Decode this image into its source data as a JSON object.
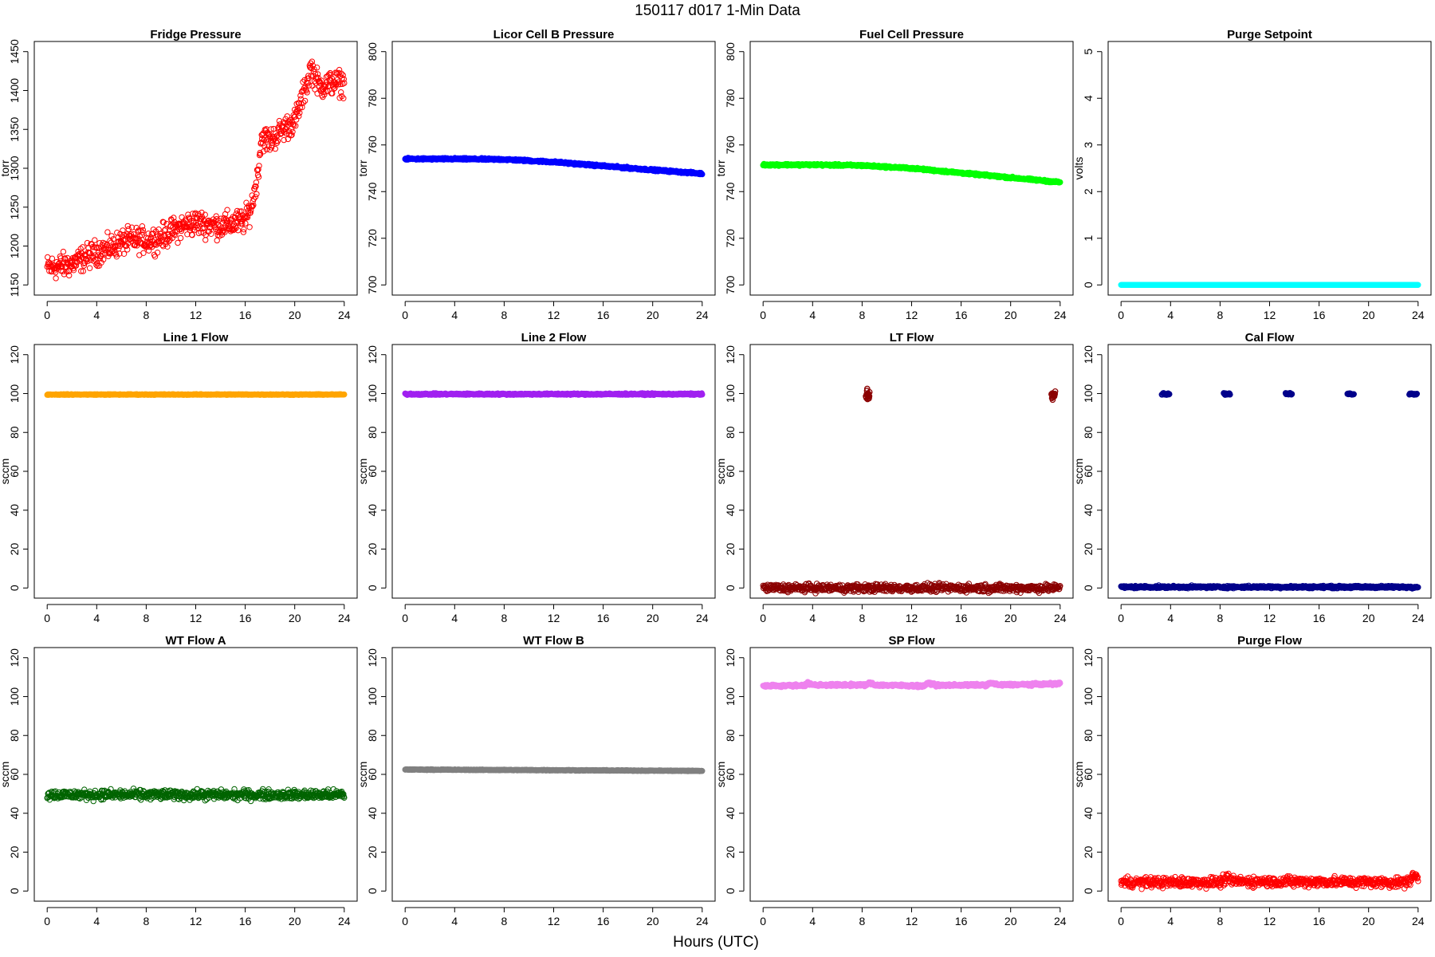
{
  "title": "150117   d017   1-Min Data",
  "xlabel": "Hours (UTC)",
  "chart_data": [
    {
      "type": "scatter",
      "title": "Fridge Pressure",
      "ylabel": "torr",
      "xlim": [
        0,
        24
      ],
      "ylim": [
        1150,
        1450
      ],
      "xticks": [
        0,
        4,
        8,
        12,
        16,
        20,
        24
      ],
      "yticks": [
        1150,
        1200,
        1250,
        1300,
        1350,
        1400,
        1450
      ],
      "color": "#ff0000",
      "marker": "open",
      "series_profile": [
        [
          0,
          1172
        ],
        [
          1,
          1174
        ],
        [
          2,
          1177
        ],
        [
          3,
          1185
        ],
        [
          4,
          1192
        ],
        [
          5,
          1197
        ],
        [
          6,
          1205
        ],
        [
          7,
          1208
        ],
        [
          8,
          1207
        ],
        [
          9,
          1210
        ],
        [
          10,
          1218
        ],
        [
          11,
          1226
        ],
        [
          12,
          1230
        ],
        [
          13,
          1228
        ],
        [
          14,
          1226
        ],
        [
          15,
          1229
        ],
        [
          16,
          1233
        ],
        [
          16.5,
          1250
        ],
        [
          17,
          1290
        ],
        [
          17.3,
          1340
        ],
        [
          18,
          1335
        ],
        [
          19,
          1350
        ],
        [
          20,
          1360
        ],
        [
          20.5,
          1385
        ],
        [
          21,
          1410
        ],
        [
          21.3,
          1430
        ],
        [
          22,
          1405
        ],
        [
          23,
          1410
        ],
        [
          24,
          1410
        ]
      ],
      "noise": 8
    },
    {
      "type": "scatter",
      "title": "Licor Cell B Pressure",
      "ylabel": "torr",
      "xlim": [
        0,
        24
      ],
      "ylim": [
        700,
        800
      ],
      "xticks": [
        0,
        4,
        8,
        12,
        16,
        20,
        24
      ],
      "yticks": [
        700,
        720,
        740,
        760,
        780,
        800
      ],
      "color": "#0000ff",
      "marker": "filled",
      "series_profile": [
        [
          0,
          754
        ],
        [
          4,
          754
        ],
        [
          8,
          753.8
        ],
        [
          12,
          752.7
        ],
        [
          16,
          751
        ],
        [
          20,
          749.3
        ],
        [
          24,
          747.7
        ]
      ],
      "noise": 0.2
    },
    {
      "type": "scatter",
      "title": "Fuel Cell Pressure",
      "ylabel": "torr",
      "xlim": [
        0,
        24
      ],
      "ylim": [
        700,
        800
      ],
      "xticks": [
        0,
        4,
        8,
        12,
        16,
        20,
        24
      ],
      "yticks": [
        700,
        720,
        740,
        760,
        780,
        800
      ],
      "color": "#00ff00",
      "marker": "filled",
      "series_profile": [
        [
          0,
          751.5
        ],
        [
          4,
          751.5
        ],
        [
          8,
          751.2
        ],
        [
          12,
          750
        ],
        [
          16,
          748
        ],
        [
          20,
          746
        ],
        [
          24,
          744
        ]
      ],
      "noise": 0.2
    },
    {
      "type": "scatter",
      "title": "Purge Setpoint",
      "ylabel": "volts",
      "xlim": [
        0,
        24
      ],
      "ylim": [
        0,
        5
      ],
      "xticks": [
        0,
        4,
        8,
        12,
        16,
        20,
        24
      ],
      "yticks": [
        0,
        1,
        2,
        3,
        4,
        5
      ],
      "color": "#00ffff",
      "marker": "filled",
      "series_profile": [
        [
          0,
          0
        ],
        [
          24,
          0
        ]
      ],
      "noise": 0
    },
    {
      "type": "scatter",
      "title": "Line 1 Flow",
      "ylabel": "sccm",
      "xlim": [
        0,
        24
      ],
      "ylim": [
        0,
        120
      ],
      "xticks": [
        0,
        4,
        8,
        12,
        16,
        20,
        24
      ],
      "yticks": [
        0,
        20,
        40,
        60,
        80,
        100,
        120
      ],
      "color": "#ffa500",
      "marker": "filled",
      "series_profile": [
        [
          0,
          99.5
        ],
        [
          24,
          99.5
        ]
      ],
      "noise": 0.1
    },
    {
      "type": "scatter",
      "title": "Line 2 Flow",
      "ylabel": "sccm",
      "xlim": [
        0,
        24
      ],
      "ylim": [
        0,
        120
      ],
      "xticks": [
        0,
        4,
        8,
        12,
        16,
        20,
        24
      ],
      "yticks": [
        0,
        20,
        40,
        60,
        80,
        100,
        120
      ],
      "color": "#a020f0",
      "marker": "filled",
      "series_profile": [
        [
          0,
          99.7
        ],
        [
          24,
          99.7
        ]
      ],
      "noise": 0.2
    },
    {
      "type": "scatter",
      "title": "LT Flow",
      "ylabel": "sccm",
      "xlim": [
        0,
        24
      ],
      "ylim": [
        0,
        120
      ],
      "xticks": [
        0,
        4,
        8,
        12,
        16,
        20,
        24
      ],
      "yticks": [
        0,
        20,
        40,
        60,
        80,
        100,
        120
      ],
      "color": "#8b0000",
      "marker": "open",
      "series_profile": [
        [
          0,
          0
        ],
        [
          24,
          0
        ]
      ],
      "noise": 1.0,
      "spikes": [
        {
          "x_from": 8.3,
          "x_to": 8.6,
          "y": 99.5,
          "spread": 1.5
        },
        {
          "x_from": 23.3,
          "x_to": 23.6,
          "y": 99.5,
          "spread": 1.5
        }
      ]
    },
    {
      "type": "scatter",
      "title": "Cal Flow",
      "ylabel": "sccm",
      "xlim": [
        0,
        24
      ],
      "ylim": [
        0,
        120
      ],
      "xticks": [
        0,
        4,
        8,
        12,
        16,
        20,
        24
      ],
      "yticks": [
        0,
        20,
        40,
        60,
        80,
        100,
        120
      ],
      "color": "#00008b",
      "marker": "open",
      "series_profile": [
        [
          0,
          0.5
        ],
        [
          24,
          0.5
        ]
      ],
      "noise": 0.3,
      "spikes": [
        {
          "x_from": 3.3,
          "x_to": 3.9,
          "y": 99.8,
          "spread": 0.2
        },
        {
          "x_from": 8.3,
          "x_to": 8.8,
          "y": 99.8,
          "spread": 0.2
        },
        {
          "x_from": 13.3,
          "x_to": 13.8,
          "y": 99.8,
          "spread": 0.2
        },
        {
          "x_from": 18.3,
          "x_to": 18.8,
          "y": 99.8,
          "spread": 0.2
        },
        {
          "x_from": 23.3,
          "x_to": 23.9,
          "y": 99.8,
          "spread": 0.2
        }
      ]
    },
    {
      "type": "scatter",
      "title": "WT Flow A",
      "ylabel": "sccm",
      "xlim": [
        0,
        24
      ],
      "ylim": [
        0,
        120
      ],
      "xticks": [
        0,
        4,
        8,
        12,
        16,
        20,
        24
      ],
      "yticks": [
        0,
        20,
        40,
        60,
        80,
        100,
        120
      ],
      "color": "#006400",
      "marker": "open",
      "series_profile": [
        [
          0,
          49.5
        ],
        [
          24,
          49.5
        ]
      ],
      "noise": 1.2
    },
    {
      "type": "scatter",
      "title": "WT Flow B",
      "ylabel": "sccm",
      "xlim": [
        0,
        24
      ],
      "ylim": [
        0,
        120
      ],
      "xticks": [
        0,
        4,
        8,
        12,
        16,
        20,
        24
      ],
      "yticks": [
        0,
        20,
        40,
        60,
        80,
        100,
        120
      ],
      "color": "#808080",
      "marker": "filled",
      "series_profile": [
        [
          0,
          62.5
        ],
        [
          24,
          61.8
        ]
      ],
      "noise": 0.1
    },
    {
      "type": "scatter",
      "title": "SP Flow",
      "ylabel": "sccm",
      "xlim": [
        0,
        24
      ],
      "ylim": [
        0,
        120
      ],
      "xticks": [
        0,
        4,
        8,
        12,
        16,
        20,
        24
      ],
      "yticks": [
        0,
        20,
        40,
        60,
        80,
        100,
        120
      ],
      "color": "#ee82ee",
      "marker": "filled",
      "series_profile": [
        [
          0,
          105.5
        ],
        [
          3.4,
          105.8
        ],
        [
          3.6,
          107
        ],
        [
          4,
          106
        ],
        [
          8.4,
          106
        ],
        [
          8.6,
          107.2
        ],
        [
          9,
          106
        ],
        [
          13,
          105.5
        ],
        [
          13.4,
          107
        ],
        [
          14,
          105.8
        ],
        [
          18,
          106
        ],
        [
          18.5,
          107
        ],
        [
          19,
          106
        ],
        [
          23.5,
          106.5
        ],
        [
          24,
          107
        ]
      ],
      "noise": 0.3
    },
    {
      "type": "scatter",
      "title": "Purge Flow",
      "ylabel": "sccm",
      "xlim": [
        0,
        24
      ],
      "ylim": [
        0,
        120
      ],
      "xticks": [
        0,
        4,
        8,
        12,
        16,
        20,
        24
      ],
      "yticks": [
        0,
        20,
        40,
        60,
        80,
        100,
        120
      ],
      "color": "#ff0000",
      "marker": "open",
      "series_profile": [
        [
          0,
          4.5
        ],
        [
          8,
          4.5
        ],
        [
          8.5,
          6.5
        ],
        [
          9,
          5
        ],
        [
          23,
          4.5
        ],
        [
          23.5,
          6.5
        ],
        [
          23.8,
          8.5
        ],
        [
          24,
          5.5
        ]
      ],
      "noise": 1.3
    }
  ]
}
